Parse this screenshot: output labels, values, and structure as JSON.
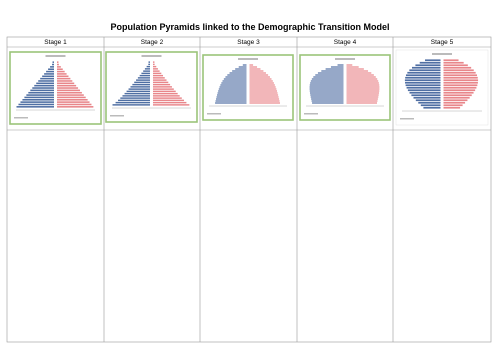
{
  "header": {
    "title": "Population Pyramids linked to the Demographic Transition Model"
  },
  "table": {
    "headers": [
      "Stage 1",
      "Stage 2",
      "Stage 3",
      "Stage 4",
      "Stage 5"
    ]
  }
}
